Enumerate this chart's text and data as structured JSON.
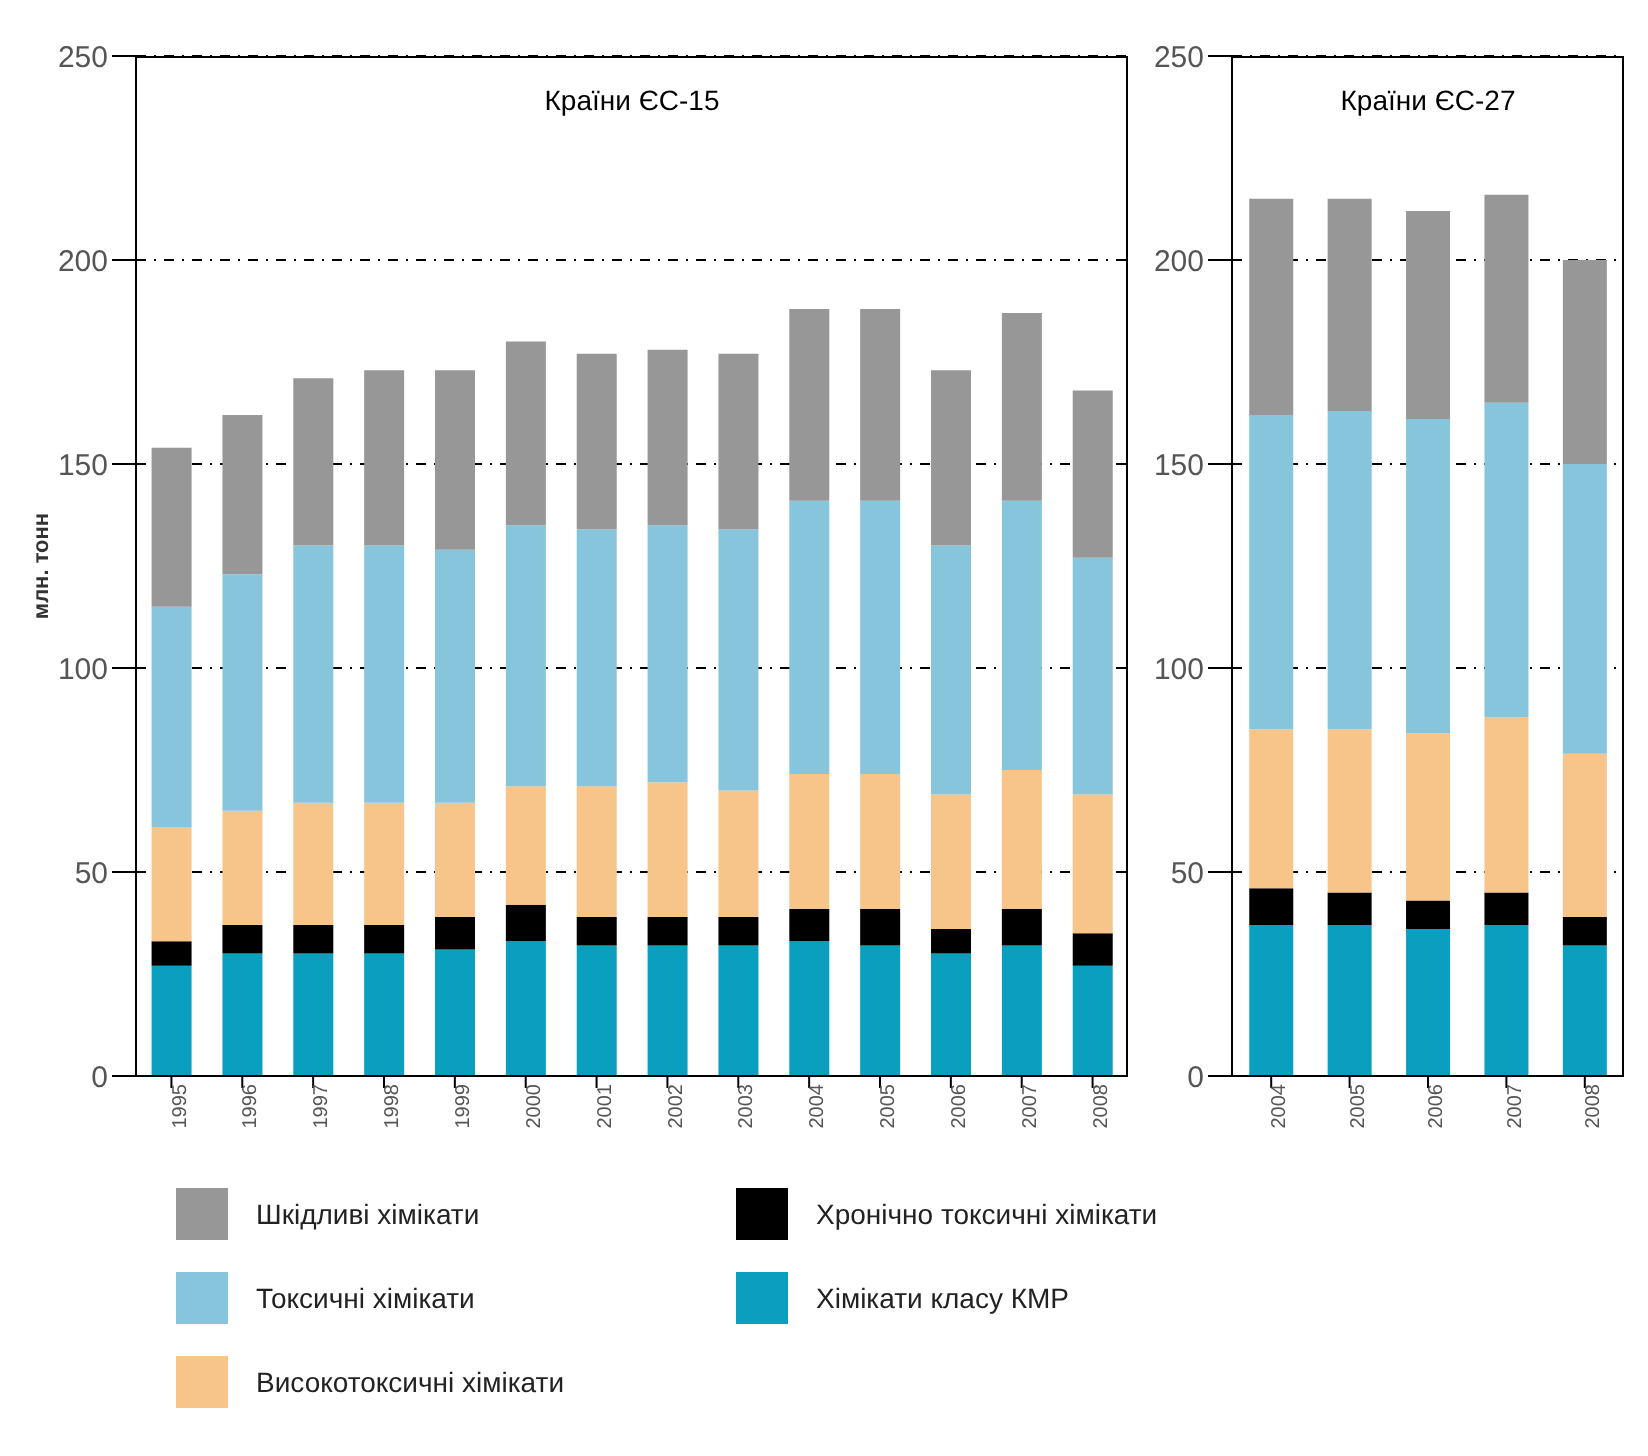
{
  "chart_data": [
    {
      "type": "bar",
      "title": "Країни ЄС-15",
      "ylabel": "млн. тонн",
      "stacked": true,
      "categories": [
        "1995",
        "1996",
        "1997",
        "1998",
        "1999",
        "2000",
        "2001",
        "2002",
        "2003",
        "2004",
        "2005",
        "2006",
        "2007",
        "2008"
      ],
      "series": [
        {
          "name": "Хімікати класу КМР",
          "color": "#0a9fbf",
          "values": [
            27,
            30,
            30,
            30,
            31,
            33,
            32,
            32,
            32,
            33,
            32,
            30,
            32,
            27
          ]
        },
        {
          "name": "Хронічно токсичні хімікати",
          "color": "#000000",
          "values": [
            6,
            7,
            7,
            7,
            8,
            9,
            7,
            7,
            7,
            8,
            9,
            6,
            9,
            8
          ]
        },
        {
          "name": "Високотоксичні хімікати",
          "color": "#f7c48a",
          "values": [
            28,
            28,
            30,
            30,
            28,
            29,
            32,
            33,
            31,
            33,
            33,
            33,
            34,
            34
          ]
        },
        {
          "name": "Токсичні хімікати",
          "color": "#86c5dc",
          "values": [
            54,
            58,
            63,
            63,
            62,
            64,
            63,
            63,
            64,
            67,
            67,
            61,
            66,
            58
          ]
        },
        {
          "name": "Шкідливі хімікати",
          "color": "#979797",
          "values": [
            39,
            39,
            41,
            43,
            44,
            45,
            43,
            43,
            43,
            47,
            47,
            43,
            46,
            41
          ]
        }
      ],
      "ylim": [
        0,
        250
      ],
      "yticks": [
        0,
        50,
        100,
        150,
        200,
        250
      ],
      "grid": "y",
      "legend": "bottom"
    },
    {
      "type": "bar",
      "title": "Країни ЄС-27",
      "stacked": true,
      "categories": [
        "2004",
        "2005",
        "2006",
        "2007",
        "2008"
      ],
      "series": [
        {
          "color": "#0a9fbf",
          "values": [
            37,
            37,
            36,
            37,
            32
          ]
        },
        {
          "color": "#000000",
          "values": [
            9,
            8,
            7,
            8,
            7
          ]
        },
        {
          "color": "#f7c48a",
          "values": [
            39,
            40,
            41,
            43,
            40
          ]
        },
        {
          "color": "#86c5dc",
          "values": [
            77,
            78,
            77,
            77,
            71
          ]
        },
        {
          "color": "#979797",
          "values": [
            53,
            52,
            51,
            51,
            50
          ]
        }
      ],
      "ylim": [
        0,
        250
      ],
      "yticks": [
        0,
        50,
        100,
        150,
        200,
        250
      ],
      "grid": "y"
    }
  ]
}
